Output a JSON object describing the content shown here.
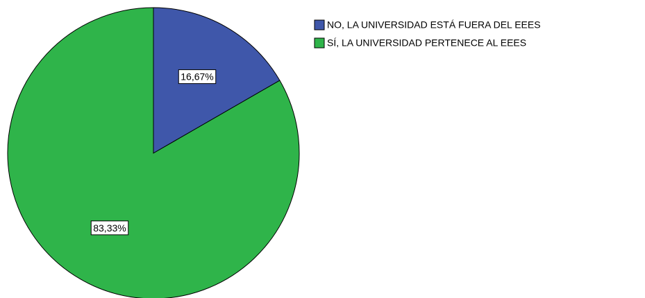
{
  "chart_data": {
    "type": "pie",
    "categories": [
      "NO, LA UNIVERSIDAD ESTÁ FUERA DEL EEES",
      "SÍ, LA UNIVERSIDAD PERTENECE AL EEES"
    ],
    "values": [
      16.67,
      83.33
    ],
    "value_labels": [
      "16,67%",
      "83,33%"
    ],
    "colors": [
      "#3f57aa",
      "#2fb44a"
    ],
    "legend": "top-right"
  }
}
